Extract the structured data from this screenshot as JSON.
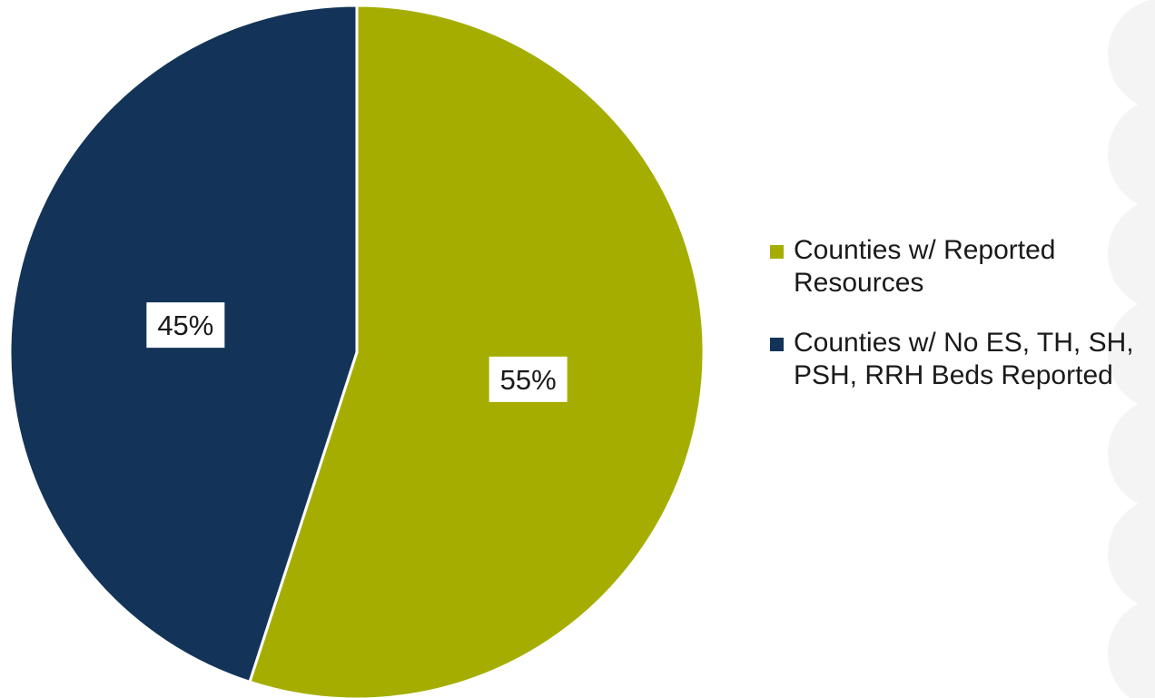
{
  "chart_data": {
    "type": "pie",
    "slices": [
      {
        "name": "Counties w/ Reported Resources",
        "value": 55,
        "label": "55%",
        "color": "#a5ae00"
      },
      {
        "name": "Counties w/ No ES, TH, SH, PSH, RRH Beds Reported",
        "value": 45,
        "label": "45%",
        "color": "#133458"
      }
    ],
    "start_angle_deg": 0,
    "direction": "clockwise",
    "legend_position": "right"
  },
  "legend": {
    "items": [
      {
        "label": "Counties w/ Reported Resources",
        "color": "#a5ae00"
      },
      {
        "label": "Counties w/ No ES, TH, SH, PSH, RRH Beds Reported",
        "color": "#133458"
      }
    ]
  },
  "decoration_color": "#f4f4f4"
}
